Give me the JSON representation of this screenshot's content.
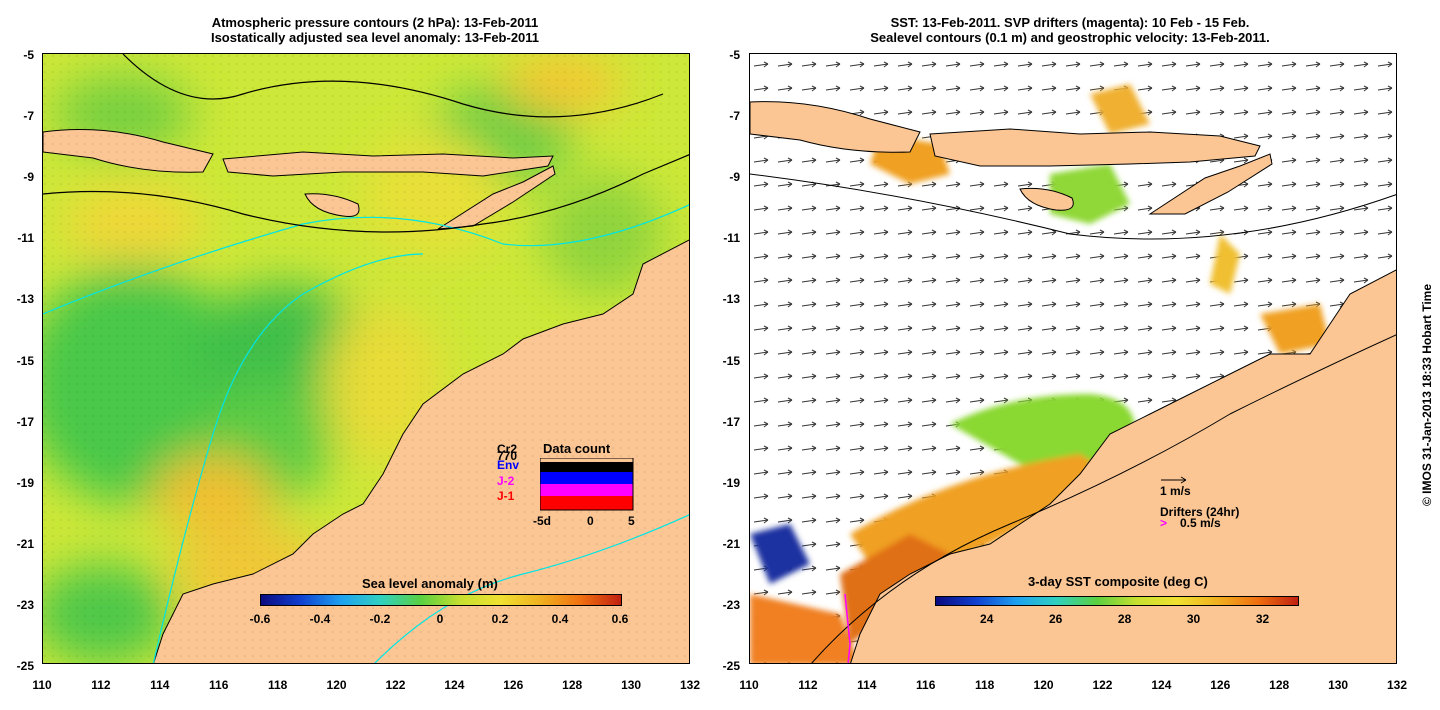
{
  "left_title": {
    "line1": "Atmospheric pressure contours (2 hPa): 13-Feb-2011",
    "line2": "Isostatically adjusted sea level anomaly: 13-Feb-2011"
  },
  "right_title": {
    "line1": "SST: 13-Feb-2011. SVP drifters (magenta): 10 Feb - 15 Feb.",
    "line2": "Sealevel contours (0.1 m) and geostrophic velocity: 13-Feb-2011."
  },
  "lat_ticks": [
    "-5",
    "-7",
    "-9",
    "-11",
    "-13",
    "-15",
    "-17",
    "-19",
    "-21",
    "-23",
    "-25"
  ],
  "lon_ticks": [
    "110",
    "112",
    "114",
    "116",
    "118",
    "120",
    "122",
    "124",
    "126",
    "128",
    "130",
    "132"
  ],
  "left_colorbar": {
    "title": "Sea level anomaly (m)",
    "ticks": [
      "-0.6",
      "-0.4",
      "-0.2",
      "0",
      "0.2",
      "0.4",
      "0.6"
    ],
    "range": [
      -0.6,
      0.6
    ]
  },
  "right_colorbar": {
    "title": "3-day SST composite (deg C)",
    "ticks": [
      "24",
      "26",
      "28",
      "30",
      "32"
    ],
    "range": [
      22.5,
      33
    ]
  },
  "data_count": {
    "title": "Data count",
    "labels": [
      "Cr2",
      "770",
      "Env",
      "J-2",
      "J-1"
    ],
    "label_colors": [
      "#000000",
      "#000000",
      "#0000ff",
      "#ff00ff",
      "#ff0000"
    ],
    "axis_ticks": [
      "-5d",
      "0",
      "5"
    ]
  },
  "velocity_legend": {
    "scale_label": "1 m/s",
    "drifters_label": "Drifters (24hr)",
    "drifter_arrow": ">",
    "drifter_scale": "0.5 m/s"
  },
  "credit": "© IMOS 31-Jan-2013 18:33 Hobart Time",
  "colors": {
    "land": "#fbc694",
    "contour": "#00e5e5",
    "drifter": "#ff00ff"
  }
}
